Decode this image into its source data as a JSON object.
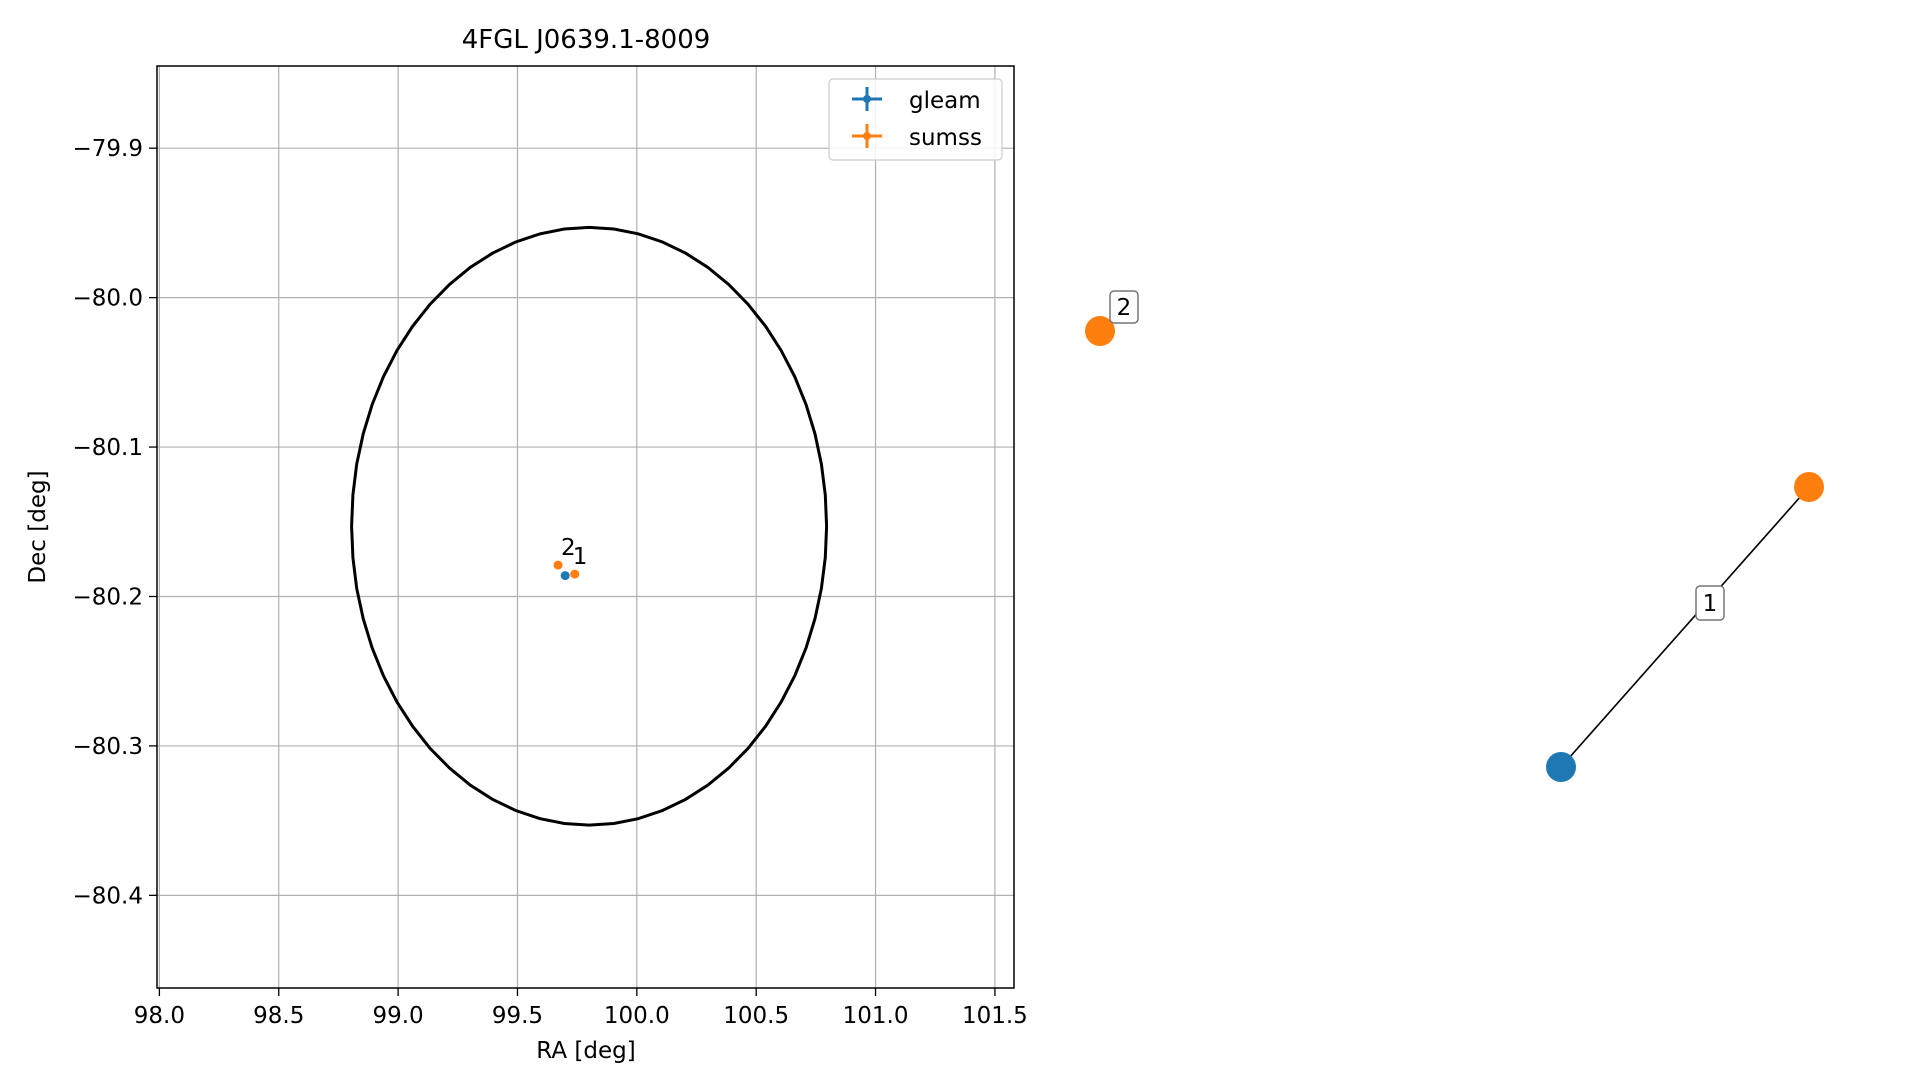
{
  "colors": {
    "gleam": "#1f77b4",
    "sumss": "#ff7f0e",
    "ellipse": "#000000",
    "grid": "#b0b0b0"
  },
  "chart_data": [
    {
      "type": "scatter",
      "title": "4FGL J0639.1-8009",
      "xlabel": "RA [deg]",
      "ylabel": "Dec [deg]",
      "xlim": [
        97.99,
        101.58
      ],
      "ylim": [
        -80.462,
        -79.845
      ],
      "grid": true,
      "legend_location": "top-right",
      "xticks": [
        98.0,
        98.5,
        99.0,
        99.5,
        100.0,
        100.5,
        101.0,
        101.5
      ],
      "xtick_labels": [
        "98.0",
        "98.5",
        "99.0",
        "99.5",
        "100.0",
        "100.5",
        "101.0",
        "101.5"
      ],
      "yticks": [
        -79.9,
        -80.0,
        -80.1,
        -80.2,
        -80.3,
        -80.4
      ],
      "ytick_labels": [
        "−79.9",
        "−80.0",
        "−80.1",
        "−80.2",
        "−80.3",
        "−80.4"
      ],
      "ellipse": {
        "center": [
          99.8,
          -80.153
        ],
        "half_width_ra": 0.995,
        "half_height_dec": 0.2
      },
      "series": [
        {
          "name": "gleam",
          "color": "#1f77b4",
          "points": [
            {
              "x": 99.7,
              "y": -80.186
            }
          ]
        },
        {
          "name": "sumss",
          "color": "#ff7f0e",
          "points": [
            {
              "x": 99.74,
              "y": -80.185
            },
            {
              "x": 99.67,
              "y": -80.179
            }
          ]
        }
      ],
      "annotations": [
        {
          "text": "2",
          "x": 99.67,
          "y": -80.179
        },
        {
          "text": "1",
          "x": 99.74,
          "y": -80.185
        }
      ]
    },
    {
      "type": "scatter",
      "nodes": [
        {
          "id": "sumss-2",
          "series": "sumss",
          "color": "#ff7f0e",
          "label": "2"
        },
        {
          "id": "sumss-1",
          "series": "sumss",
          "color": "#ff7f0e"
        },
        {
          "id": "gleam-1",
          "series": "gleam",
          "color": "#1f77b4"
        }
      ],
      "edges": [
        {
          "from": "gleam-1",
          "to": "sumss-1",
          "label": "1"
        }
      ]
    }
  ]
}
